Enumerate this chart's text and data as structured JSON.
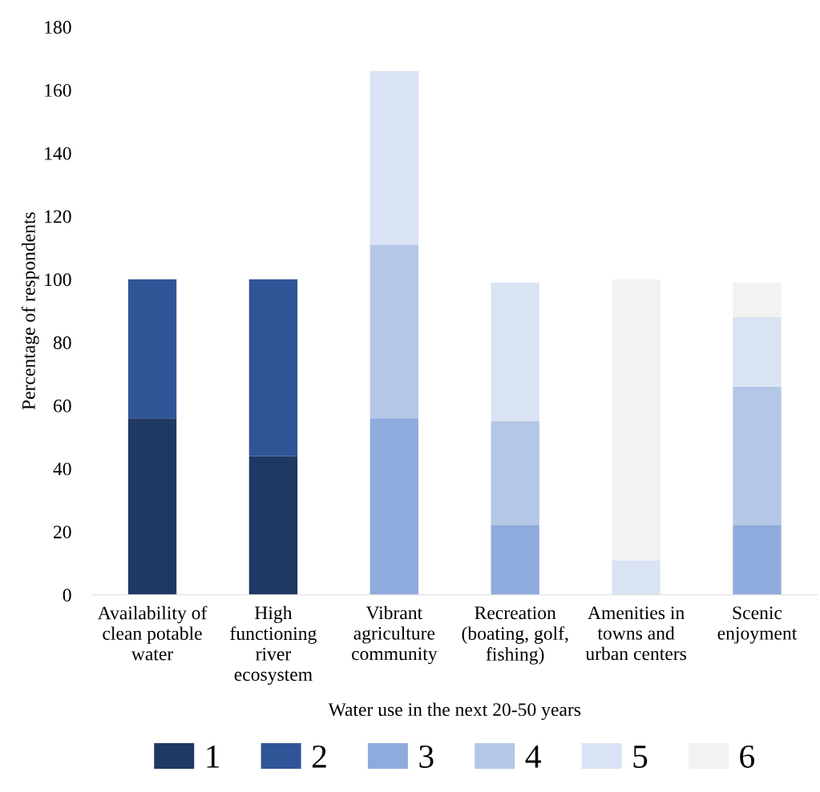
{
  "chart_data": {
    "type": "bar",
    "stacked": true,
    "xlabel": "Water use in the next 20-50 years",
    "ylabel": "Percentage of respondents",
    "categories": [
      "Availability of clean potable water",
      "High functioning river ecosystem",
      "Vibrant agriculture community",
      "Recreation (boating, golf, fishing)",
      "Amenities in towns and urban centers",
      "Scenic enjoyment"
    ],
    "series": [
      {
        "name": "1",
        "color": "#203864",
        "values": [
          56,
          44,
          0,
          0,
          0,
          0
        ]
      },
      {
        "name": "2",
        "color": "#2f5597",
        "values": [
          44,
          56,
          0,
          0,
          0,
          0
        ]
      },
      {
        "name": "3",
        "color": "#8faadc",
        "values": [
          0,
          0,
          56,
          22,
          0,
          22
        ]
      },
      {
        "name": "4",
        "color": "#b4c7e7",
        "values": [
          0,
          0,
          55,
          33,
          0,
          44
        ]
      },
      {
        "name": "5",
        "color": "#dae3f3",
        "values": [
          0,
          0,
          55,
          44,
          11,
          22
        ]
      },
      {
        "name": "6",
        "color": "#f2f2f2",
        "values": [
          0,
          0,
          0,
          0,
          89,
          11
        ]
      }
    ],
    "ylim": [
      0,
      180
    ],
    "yticks": [
      0,
      20,
      40,
      60,
      80,
      100,
      120,
      140,
      160,
      180
    ],
    "grid": false,
    "legend": "bottom"
  }
}
